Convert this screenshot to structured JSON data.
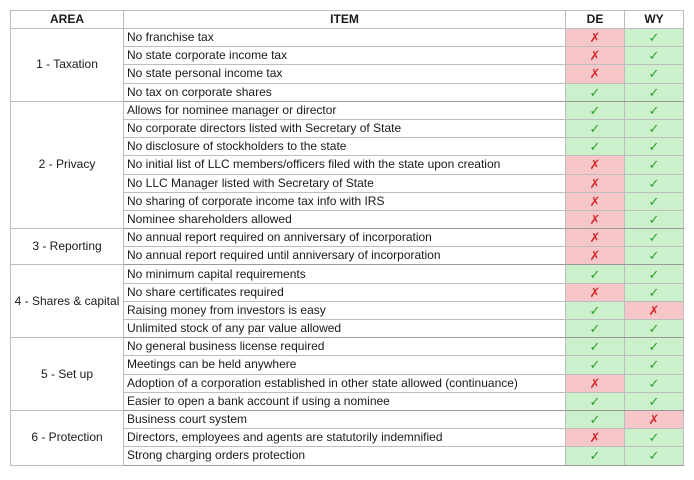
{
  "headers": {
    "area": "AREA",
    "item": "ITEM",
    "de": "DE",
    "wy": "WY"
  },
  "symbols": {
    "yes": "✓",
    "no": "✗"
  },
  "colors": {
    "yes_bg": "#ccf0cc",
    "yes_fg": "#2ea02e",
    "no_bg": "#f7c6c8",
    "no_fg": "#d22d2d"
  },
  "groups": [
    {
      "area": "1 - Taxation",
      "rows": [
        {
          "item": "No franchise tax",
          "de": "no",
          "wy": "yes"
        },
        {
          "item": "No state corporate income tax",
          "de": "no",
          "wy": "yes"
        },
        {
          "item": "No state personal income tax",
          "de": "no",
          "wy": "yes"
        },
        {
          "item": "No tax on corporate shares",
          "de": "yes",
          "wy": "yes"
        }
      ]
    },
    {
      "area": "2 - Privacy",
      "rows": [
        {
          "item": "Allows for nominee manager or director",
          "de": "yes",
          "wy": "yes"
        },
        {
          "item": "No corporate directors listed with Secretary of State",
          "de": "yes",
          "wy": "yes"
        },
        {
          "item": "No disclosure of stockholders to the state",
          "de": "yes",
          "wy": "yes"
        },
        {
          "item": "No initial list of LLC members/officers filed with the state upon creation",
          "de": "no",
          "wy": "yes"
        },
        {
          "item": "No LLC Manager listed with Secretary of State",
          "de": "no",
          "wy": "yes"
        },
        {
          "item": "No sharing of corporate income tax info with IRS",
          "de": "no",
          "wy": "yes"
        },
        {
          "item": "Nominee shareholders allowed",
          "de": "no",
          "wy": "yes"
        }
      ]
    },
    {
      "area": "3 - Reporting",
      "rows": [
        {
          "item": "No annual report required on anniversary of incorporation",
          "de": "no",
          "wy": "yes"
        },
        {
          "item": "No annual report required until anniversary of incorporation",
          "de": "no",
          "wy": "yes"
        }
      ]
    },
    {
      "area": "4 - Shares & capital",
      "rows": [
        {
          "item": "No minimum capital requirements",
          "de": "yes",
          "wy": "yes"
        },
        {
          "item": "No share certificates required",
          "de": "no",
          "wy": "yes"
        },
        {
          "item": "Raising money from investors is easy",
          "de": "yes",
          "wy": "no"
        },
        {
          "item": "Unlimited stock of any par value allowed",
          "de": "yes",
          "wy": "yes"
        }
      ]
    },
    {
      "area": "5 - Set up",
      "rows": [
        {
          "item": "No general business license required",
          "de": "yes",
          "wy": "yes"
        },
        {
          "item": "Meetings can be held anywhere",
          "de": "yes",
          "wy": "yes"
        },
        {
          "item": "Adoption of a corporation established in other state allowed (continuance)",
          "de": "no",
          "wy": "yes"
        },
        {
          "item": "Easier to open a bank account if using a nominee",
          "de": "yes",
          "wy": "yes"
        }
      ]
    },
    {
      "area": "6 - Protection",
      "rows": [
        {
          "item": "Business court system",
          "de": "yes",
          "wy": "no"
        },
        {
          "item": "Directors, employees and agents are statutorily indemnified",
          "de": "no",
          "wy": "yes"
        },
        {
          "item": "Strong charging orders protection",
          "de": "yes",
          "wy": "yes"
        }
      ]
    }
  ]
}
